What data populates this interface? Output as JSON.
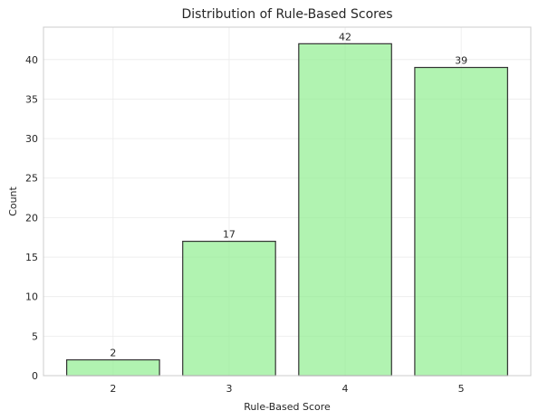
{
  "chart_data": {
    "type": "bar",
    "title": "Distribution of Rule-Based Scores",
    "xlabel": "Rule-Based Score",
    "ylabel": "Count",
    "categories": [
      "2",
      "3",
      "4",
      "5"
    ],
    "values": [
      2,
      17,
      42,
      39
    ],
    "ylim": [
      0,
      44.1
    ],
    "yticks": [
      0,
      5,
      10,
      15,
      20,
      25,
      30,
      35,
      40
    ],
    "grid": true,
    "bar_color": "#90EE90",
    "bar_edge_color": "#333333",
    "bar_opacity": 0.7,
    "data_labels": true
  }
}
